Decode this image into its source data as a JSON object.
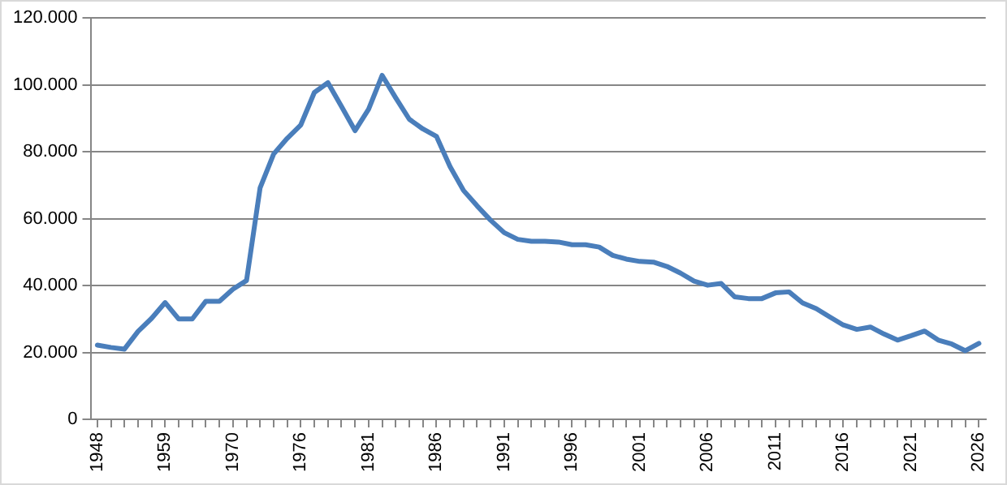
{
  "chart_data": {
    "type": "line",
    "categories": [
      "1948",
      null,
      null,
      null,
      null,
      "1959",
      null,
      null,
      null,
      null,
      "1970",
      null,
      null,
      null,
      null,
      "1976",
      null,
      null,
      null,
      null,
      "1981",
      null,
      null,
      null,
      null,
      "1986",
      null,
      null,
      null,
      null,
      "1991",
      null,
      null,
      null,
      null,
      "1996",
      null,
      null,
      null,
      null,
      "2001",
      null,
      null,
      null,
      null,
      "2006",
      null,
      null,
      null,
      null,
      "2011",
      null,
      null,
      null,
      null,
      "2016",
      null,
      null,
      null,
      null,
      "2021",
      null,
      null,
      null,
      null,
      "2026"
    ],
    "series": [
      {
        "color": "#4a7ebb",
        "values": [
          22200,
          21500,
          21000,
          26300,
          30200,
          34900,
          30000,
          30000,
          35300,
          35300,
          38900,
          41500,
          69200,
          79300,
          84000,
          88000,
          97700,
          100600,
          93500,
          86300,
          92700,
          102800,
          96100,
          89700,
          86800,
          84600,
          75600,
          68400,
          63800,
          59500,
          55800,
          53800,
          53200,
          53200,
          53000,
          52200,
          52200,
          51500,
          49000,
          47900,
          47200,
          47000,
          45700,
          43700,
          41300,
          40100,
          40600,
          36600,
          36100,
          36100,
          37800,
          38100,
          34800,
          33100,
          30600,
          28200,
          26900,
          27600,
          25500,
          23700,
          25000,
          26400,
          23700,
          22500,
          20500,
          22700
        ]
      }
    ],
    "ylim": [
      0,
      120000
    ],
    "yticks": [
      {
        "value": 0,
        "label": "0"
      },
      {
        "value": 20000,
        "label": "20.000"
      },
      {
        "value": 40000,
        "label": "40.000"
      },
      {
        "value": 60000,
        "label": "60.000"
      },
      {
        "value": 80000,
        "label": "80.000"
      },
      {
        "value": 100000,
        "label": "100.000"
      },
      {
        "value": 120000,
        "label": "120.000"
      }
    ],
    "grid": "y",
    "legend": false,
    "marker": "none",
    "line_style": "solid"
  }
}
